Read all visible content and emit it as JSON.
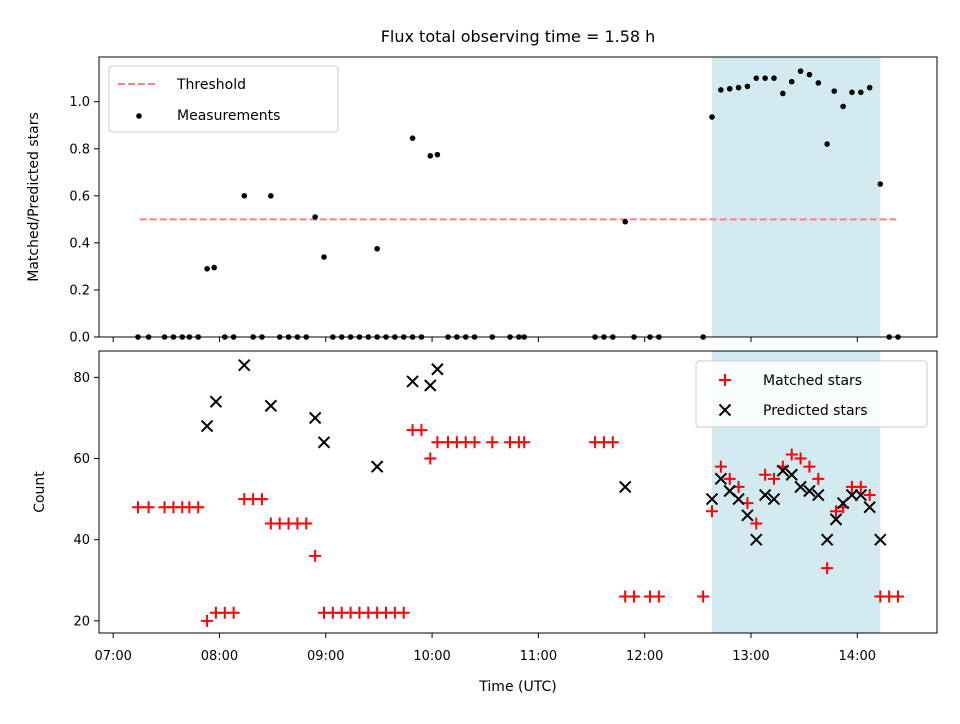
{
  "chart_data": {
    "type": "scatter",
    "title": "Flux total observing time = 1.58 h",
    "highlight_band": {
      "x_start": "12:38",
      "x_end": "14:13",
      "color": "#d3eaf0"
    },
    "xaxis": {
      "label": "Time (UTC)",
      "range": [
        "06:52",
        "14:45"
      ],
      "ticks": [
        {
          "t": "07:00",
          "label": "07:00"
        },
        {
          "t": "08:00",
          "label": "08:00"
        },
        {
          "t": "09:00",
          "label": "09:00"
        },
        {
          "t": "10:00",
          "label": "10:00"
        },
        {
          "t": "11:00",
          "label": "11:00"
        },
        {
          "t": "12:00",
          "label": "12:00"
        },
        {
          "t": "13:00",
          "label": "13:00"
        },
        {
          "t": "14:00",
          "label": "14:00"
        }
      ]
    },
    "panels": [
      {
        "ylabel": "Matched/Predicted stars",
        "ylim": [
          0,
          1.19
        ],
        "yticks": [
          "0.0",
          "0.2",
          "0.4",
          "0.6",
          "0.8",
          "1.0"
        ],
        "legend": {
          "position": "upper-left",
          "entries": [
            "Threshold",
            "Measurements"
          ]
        },
        "threshold": {
          "name": "Threshold",
          "value": 0.5,
          "x_start": "07:15",
          "x_end": "14:22",
          "color": "#ff7f7f"
        },
        "measurements": {
          "name": "Measurements",
          "color": "#000000",
          "points": [
            [
              "07:14",
              0
            ],
            [
              "07:20",
              0
            ],
            [
              "07:29",
              0
            ],
            [
              "07:34",
              0
            ],
            [
              "07:39",
              0
            ],
            [
              "07:43",
              0
            ],
            [
              "07:48",
              0
            ],
            [
              "07:53",
              0.29
            ],
            [
              "07:57",
              0.295
            ],
            [
              "08:03",
              0
            ],
            [
              "08:08",
              0
            ],
            [
              "08:14",
              0.6
            ],
            [
              "08:19",
              0
            ],
            [
              "08:24",
              0
            ],
            [
              "08:29",
              0.6
            ],
            [
              "08:34",
              0
            ],
            [
              "08:39",
              0
            ],
            [
              "08:44",
              0
            ],
            [
              "08:49",
              0
            ],
            [
              "08:54",
              0.51
            ],
            [
              "08:59",
              0.34
            ],
            [
              "09:04",
              0
            ],
            [
              "09:09",
              0
            ],
            [
              "09:14",
              0
            ],
            [
              "09:19",
              0
            ],
            [
              "09:24",
              0
            ],
            [
              "09:29",
              0
            ],
            [
              "09:34",
              0
            ],
            [
              "09:39",
              0
            ],
            [
              "09:44",
              0
            ],
            [
              "09:49",
              0
            ],
            [
              "09:29",
              0.375
            ],
            [
              "09:49",
              0.845
            ],
            [
              "09:54",
              0
            ],
            [
              "09:59",
              0.77
            ],
            [
              "10:03",
              0.775
            ],
            [
              "10:09",
              0
            ],
            [
              "10:14",
              0
            ],
            [
              "10:19",
              0
            ],
            [
              "10:24",
              0
            ],
            [
              "10:34",
              0
            ],
            [
              "10:44",
              0
            ],
            [
              "10:49",
              0
            ],
            [
              "10:52",
              0
            ],
            [
              "11:32",
              0
            ],
            [
              "11:37",
              0
            ],
            [
              "11:42",
              0
            ],
            [
              "11:49",
              0.49
            ],
            [
              "11:54",
              0
            ],
            [
              "12:03",
              0
            ],
            [
              "12:08",
              0
            ],
            [
              "12:33",
              0
            ],
            [
              "12:38",
              0.935
            ],
            [
              "12:43",
              1.05
            ],
            [
              "12:48",
              1.055
            ],
            [
              "12:53",
              1.06
            ],
            [
              "12:58",
              1.065
            ],
            [
              "13:03",
              1.1
            ],
            [
              "13:08",
              1.1
            ],
            [
              "13:13",
              1.1
            ],
            [
              "13:18",
              1.035
            ],
            [
              "13:23",
              1.085
            ],
            [
              "13:28",
              1.13
            ],
            [
              "13:33",
              1.115
            ],
            [
              "13:38",
              1.08
            ],
            [
              "13:43",
              0.82
            ],
            [
              "13:47",
              1.045
            ],
            [
              "13:52",
              0.98
            ],
            [
              "13:57",
              1.04
            ],
            [
              "14:02",
              1.04
            ],
            [
              "14:07",
              1.06
            ],
            [
              "14:13",
              0.65
            ],
            [
              "14:18",
              0
            ],
            [
              "14:23",
              0
            ]
          ]
        }
      },
      {
        "ylabel": "Count",
        "ylim": [
          17,
          86.5
        ],
        "yticks": [
          "20",
          "40",
          "60",
          "80"
        ],
        "legend": {
          "position": "upper-right",
          "entries": [
            "Matched stars",
            "Predicted stars"
          ]
        },
        "matched": {
          "name": "Matched stars",
          "color": "#ff0000",
          "points": [
            [
              "07:14",
              48
            ],
            [
              "07:20",
              48
            ],
            [
              "07:29",
              48
            ],
            [
              "07:34",
              48
            ],
            [
              "07:39",
              48
            ],
            [
              "07:43",
              48
            ],
            [
              "07:48",
              48
            ],
            [
              "07:53",
              20
            ],
            [
              "07:58",
              22
            ],
            [
              "08:03",
              22
            ],
            [
              "08:08",
              22
            ],
            [
              "08:14",
              50
            ],
            [
              "08:19",
              50
            ],
            [
              "08:24",
              50
            ],
            [
              "08:29",
              44
            ],
            [
              "08:34",
              44
            ],
            [
              "08:39",
              44
            ],
            [
              "08:44",
              44
            ],
            [
              "08:49",
              44
            ],
            [
              "08:54",
              36
            ],
            [
              "08:59",
              22
            ],
            [
              "09:04",
              22
            ],
            [
              "09:09",
              22
            ],
            [
              "09:14",
              22
            ],
            [
              "09:19",
              22
            ],
            [
              "09:24",
              22
            ],
            [
              "09:29",
              22
            ],
            [
              "09:34",
              22
            ],
            [
              "09:39",
              22
            ],
            [
              "09:44",
              22
            ],
            [
              "09:49",
              67
            ],
            [
              "09:54",
              67
            ],
            [
              "09:59",
              60
            ],
            [
              "10:03",
              64
            ],
            [
              "10:09",
              64
            ],
            [
              "10:14",
              64
            ],
            [
              "10:19",
              64
            ],
            [
              "10:24",
              64
            ],
            [
              "10:34",
              64
            ],
            [
              "10:44",
              64
            ],
            [
              "10:49",
              64
            ],
            [
              "10:52",
              64
            ],
            [
              "11:32",
              64
            ],
            [
              "11:37",
              64
            ],
            [
              "11:42",
              64
            ],
            [
              "11:49",
              26
            ],
            [
              "11:54",
              26
            ],
            [
              "12:03",
              26
            ],
            [
              "12:08",
              26
            ],
            [
              "12:33",
              26
            ],
            [
              "12:38",
              47
            ],
            [
              "12:43",
              58
            ],
            [
              "12:48",
              55
            ],
            [
              "12:53",
              53
            ],
            [
              "12:58",
              49
            ],
            [
              "13:03",
              44
            ],
            [
              "13:08",
              56
            ],
            [
              "13:13",
              55
            ],
            [
              "13:18",
              58
            ],
            [
              "13:23",
              61
            ],
            [
              "13:28",
              60
            ],
            [
              "13:33",
              58
            ],
            [
              "13:38",
              55
            ],
            [
              "13:43",
              33
            ],
            [
              "13:48",
              47
            ],
            [
              "13:52",
              48
            ],
            [
              "13:57",
              53
            ],
            [
              "14:02",
              53
            ],
            [
              "14:07",
              51
            ],
            [
              "14:13",
              26
            ],
            [
              "14:18",
              26
            ],
            [
              "14:23",
              26
            ]
          ]
        },
        "predicted": {
          "name": "Predicted stars",
          "color": "#000000",
          "points": [
            [
              "07:53",
              68
            ],
            [
              "07:58",
              74
            ],
            [
              "08:14",
              83
            ],
            [
              "08:29",
              73
            ],
            [
              "08:54",
              70
            ],
            [
              "08:59",
              64
            ],
            [
              "09:29",
              58
            ],
            [
              "09:49",
              79
            ],
            [
              "09:59",
              78
            ],
            [
              "10:03",
              82
            ],
            [
              "11:49",
              53
            ],
            [
              "12:38",
              50
            ],
            [
              "12:43",
              55
            ],
            [
              "12:48",
              52
            ],
            [
              "12:53",
              50
            ],
            [
              "12:58",
              46
            ],
            [
              "13:03",
              40
            ],
            [
              "13:08",
              51
            ],
            [
              "13:13",
              50
            ],
            [
              "13:18",
              57
            ],
            [
              "13:23",
              56
            ],
            [
              "13:28",
              53
            ],
            [
              "13:33",
              52
            ],
            [
              "13:38",
              51
            ],
            [
              "13:43",
              40
            ],
            [
              "13:48",
              45
            ],
            [
              "13:52",
              49
            ],
            [
              "13:57",
              51
            ],
            [
              "14:02",
              51
            ],
            [
              "14:07",
              48
            ],
            [
              "14:13",
              40
            ]
          ]
        }
      }
    ]
  }
}
